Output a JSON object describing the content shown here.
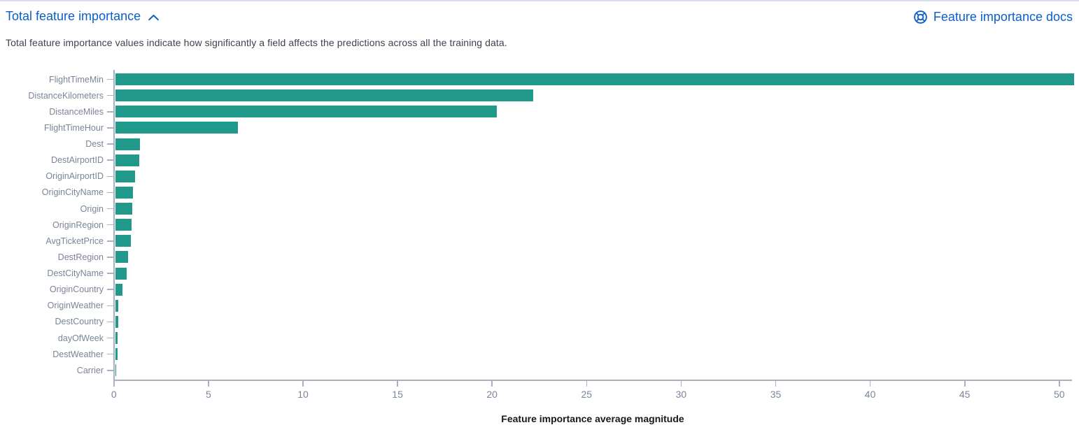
{
  "accordion": {
    "title": "Total feature importance"
  },
  "docs_link": {
    "label": "Feature importance docs"
  },
  "description": "Total feature importance values indicate how significantly a field affects the predictions across all the training data.",
  "icons": {
    "chevron_up": "collapse section (⌃)",
    "help_lifebuoy": "docs lifebuoy (◎)"
  },
  "colors": {
    "link_blue": "#0b5fc7",
    "bar_teal": "#20998a",
    "axis_line": "#a9b0c3",
    "tick_label_text": "#7b8599",
    "category_label_text": "#7a8499",
    "description_text": "#3a4150",
    "axis_title_text": "#16181d"
  },
  "chart_data": {
    "type": "bar",
    "orientation": "horizontal",
    "title": "Total feature importance",
    "xlabel": "Feature importance average magnitude",
    "ylabel": "",
    "categories": [
      "FlightTimeMin",
      "DistanceKilometers",
      "DistanceMiles",
      "FlightTimeHour",
      "Dest",
      "DestAirportID",
      "OriginAirportID",
      "OriginCityName",
      "Origin",
      "OriginRegion",
      "AvgTicketPrice",
      "DestRegion",
      "DestCityName",
      "OriginCountry",
      "OriginWeather",
      "DestCountry",
      "dayOfWeek",
      "DestWeather",
      "Carrier"
    ],
    "values": [
      50.7,
      22.1,
      20.2,
      6.5,
      1.32,
      1.29,
      1.06,
      0.95,
      0.9,
      0.88,
      0.83,
      0.7,
      0.6,
      0.4,
      0.18,
      0.17,
      0.14,
      0.11,
      0.03
    ],
    "xticks": [
      0,
      5,
      10,
      15,
      20,
      25,
      30,
      35,
      40,
      45,
      50
    ],
    "xlim": [
      0,
      50.7
    ],
    "grid": false,
    "legend": false
  }
}
